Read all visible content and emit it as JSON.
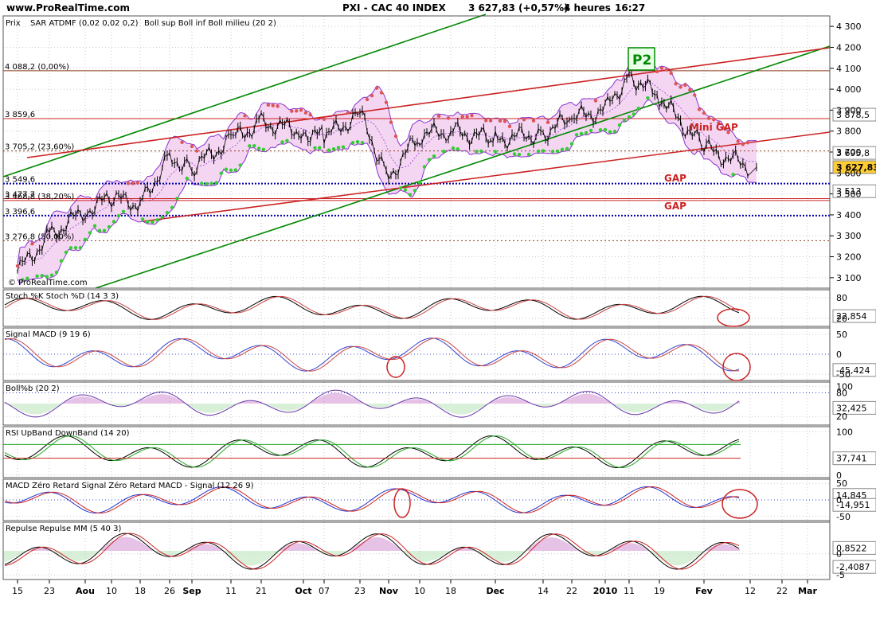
{
  "header": {
    "site": "www.ProRealTime.com",
    "instrument": "PXI - CAC 40 INDEX",
    "quote": "3 627,83 (+0,57%)",
    "timeframe": "4 heures",
    "time": "16:27"
  },
  "colors": {
    "background": "#ffffff",
    "grid": "#c8c8d0",
    "axis": "#000000",
    "price": "#000000",
    "sar_up": "#33cc33",
    "sar_down": "#dd5555",
    "bollinger": "#8833cc",
    "bollinger_fill": "#f4d6f2",
    "trend_green": "#008800",
    "trend_red": "#cc2222",
    "hline_blue": "#0000aa",
    "hline_brown": "#8b3a1a",
    "annotation": "#cc2222"
  },
  "x_axis": {
    "labels": [
      "15",
      "23",
      "Aou",
      "10",
      "18",
      "26",
      "Sep",
      "11",
      "21",
      "Oct",
      "07",
      "23",
      "Nov",
      "10",
      "18",
      "Dec",
      "14",
      "22",
      "2010",
      "11",
      "19",
      "Fev",
      "12",
      "22",
      "Mar"
    ],
    "bold": [
      "Aou",
      "Sep",
      "Oct",
      "Nov",
      "Dec",
      "2010",
      "Fev",
      "Mar"
    ]
  },
  "price_panel": {
    "legend": {
      "prix": "Prix",
      "sar": "SAR ATDMF (0,02 0,02 0,2)",
      "boll": "Boll sup Boll inf Boll milieu (20 2)"
    },
    "yticks": [
      "4 300",
      "4 200",
      "4 100",
      "4 000",
      "3 900",
      "3 800",
      "3 700",
      "3 600",
      "3 500",
      "3 400",
      "3 300",
      "3 200",
      "3 100"
    ],
    "level_labels": [
      "4 088,2 (0,00%)",
      "3 859,6",
      "3 705,2 (23,60%)",
      "3 549,6",
      "3 477,7",
      "3 468,8 (38,20%)",
      "3 396,6",
      "3 276,8 (50,00%)"
    ],
    "right_tags": [
      "3 878,5",
      "3 695,8",
      "3 627,83",
      "3 513"
    ],
    "annotations": {
      "p2": "P2",
      "mini_gap": "Mini GAP",
      "gap1": "GAP",
      "gap2": "GAP"
    },
    "watermark": "© ProRealTime.com"
  },
  "indicators": [
    {
      "id": "stoch",
      "legend": "Stoch %K Stoch %D (14 3 3)",
      "yticks": [
        "80",
        "20"
      ],
      "tag": "22,854"
    },
    {
      "id": "macd_signal",
      "legend": "Signal MACD (9 19 6)",
      "yticks": [
        "50",
        "0",
        "-50"
      ],
      "tag": "-45,424"
    },
    {
      "id": "bollpct",
      "legend": "Boll%b (20 2)",
      "yticks": [
        "100",
        "80",
        "20"
      ],
      "tag": "32,425"
    },
    {
      "id": "rsi",
      "legend": "RSI UpBand DownBand (14 20)",
      "yticks": [
        "100",
        "0"
      ],
      "tag": "37,741"
    },
    {
      "id": "macd_zero",
      "legend": "MACD Zéro Retard Signal Zéro Retard MACD - Signal (12 26 9)",
      "yticks": [
        "50",
        "0",
        "-50"
      ],
      "tags": [
        "14,845",
        "-14,951"
      ]
    },
    {
      "id": "repulse",
      "legend": "Repulse Repulse MM (5 40 3)",
      "yticks": [
        "0",
        "-5"
      ],
      "tags": [
        "0,8522",
        "-2,4087"
      ]
    }
  ],
  "chart_data": {
    "type": "line",
    "title": "PXI - CAC 40 INDEX",
    "xlabel": "",
    "ylabel": "",
    "ylim": [
      3050,
      4350
    ],
    "grid": true,
    "x": [
      "15",
      "23",
      "Aou",
      "10",
      "18",
      "26",
      "Sep",
      "11",
      "21",
      "Oct",
      "07",
      "23",
      "Nov",
      "10",
      "18",
      "Dec",
      "14",
      "22",
      "2010",
      "11",
      "19",
      "Fev",
      "12",
      "22",
      "Mar"
    ],
    "series": [
      {
        "values": [
          3130,
          3300,
          3420,
          3480,
          3450,
          3680,
          3620,
          3760,
          3840,
          3800,
          3770,
          3880,
          3580,
          3780,
          3800,
          3760,
          3790,
          3860,
          3900,
          4070,
          3960,
          3720,
          3627.83,
          null,
          null
        ]
      }
    ],
    "horizontal_levels": [
      4088.2,
      3859.6,
      3705.2,
      3549.6,
      3477.7,
      3468.8,
      3396.6,
      3276.8
    ],
    "last_value": 3627.83
  }
}
